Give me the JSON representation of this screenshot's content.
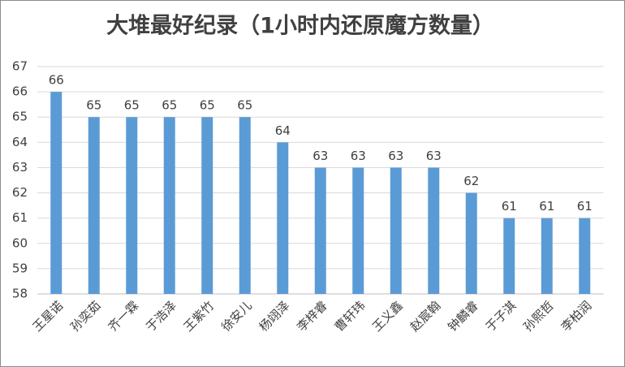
{
  "chart_data": {
    "type": "bar",
    "title": "大堆最好纪录（1小时内还原魔方数量）",
    "categories": [
      "王星诺",
      "孙奕茹",
      "齐一霖",
      "于浩泽",
      "王紫竹",
      "徐安儿",
      "杨翊泽",
      "李梓睿",
      "曹轩玮",
      "王义鑫",
      "赵宸翰",
      "钟麟睿",
      "于子淇",
      "孙熙哲",
      "李柏润"
    ],
    "values": [
      66,
      65,
      65,
      65,
      65,
      65,
      64,
      63,
      63,
      63,
      63,
      62,
      61,
      61,
      61
    ],
    "color": "#5b9bd5",
    "ylim": [
      58,
      67
    ],
    "yticks": [
      58,
      59,
      60,
      61,
      62,
      63,
      64,
      65,
      66,
      67
    ],
    "grid": true
  }
}
